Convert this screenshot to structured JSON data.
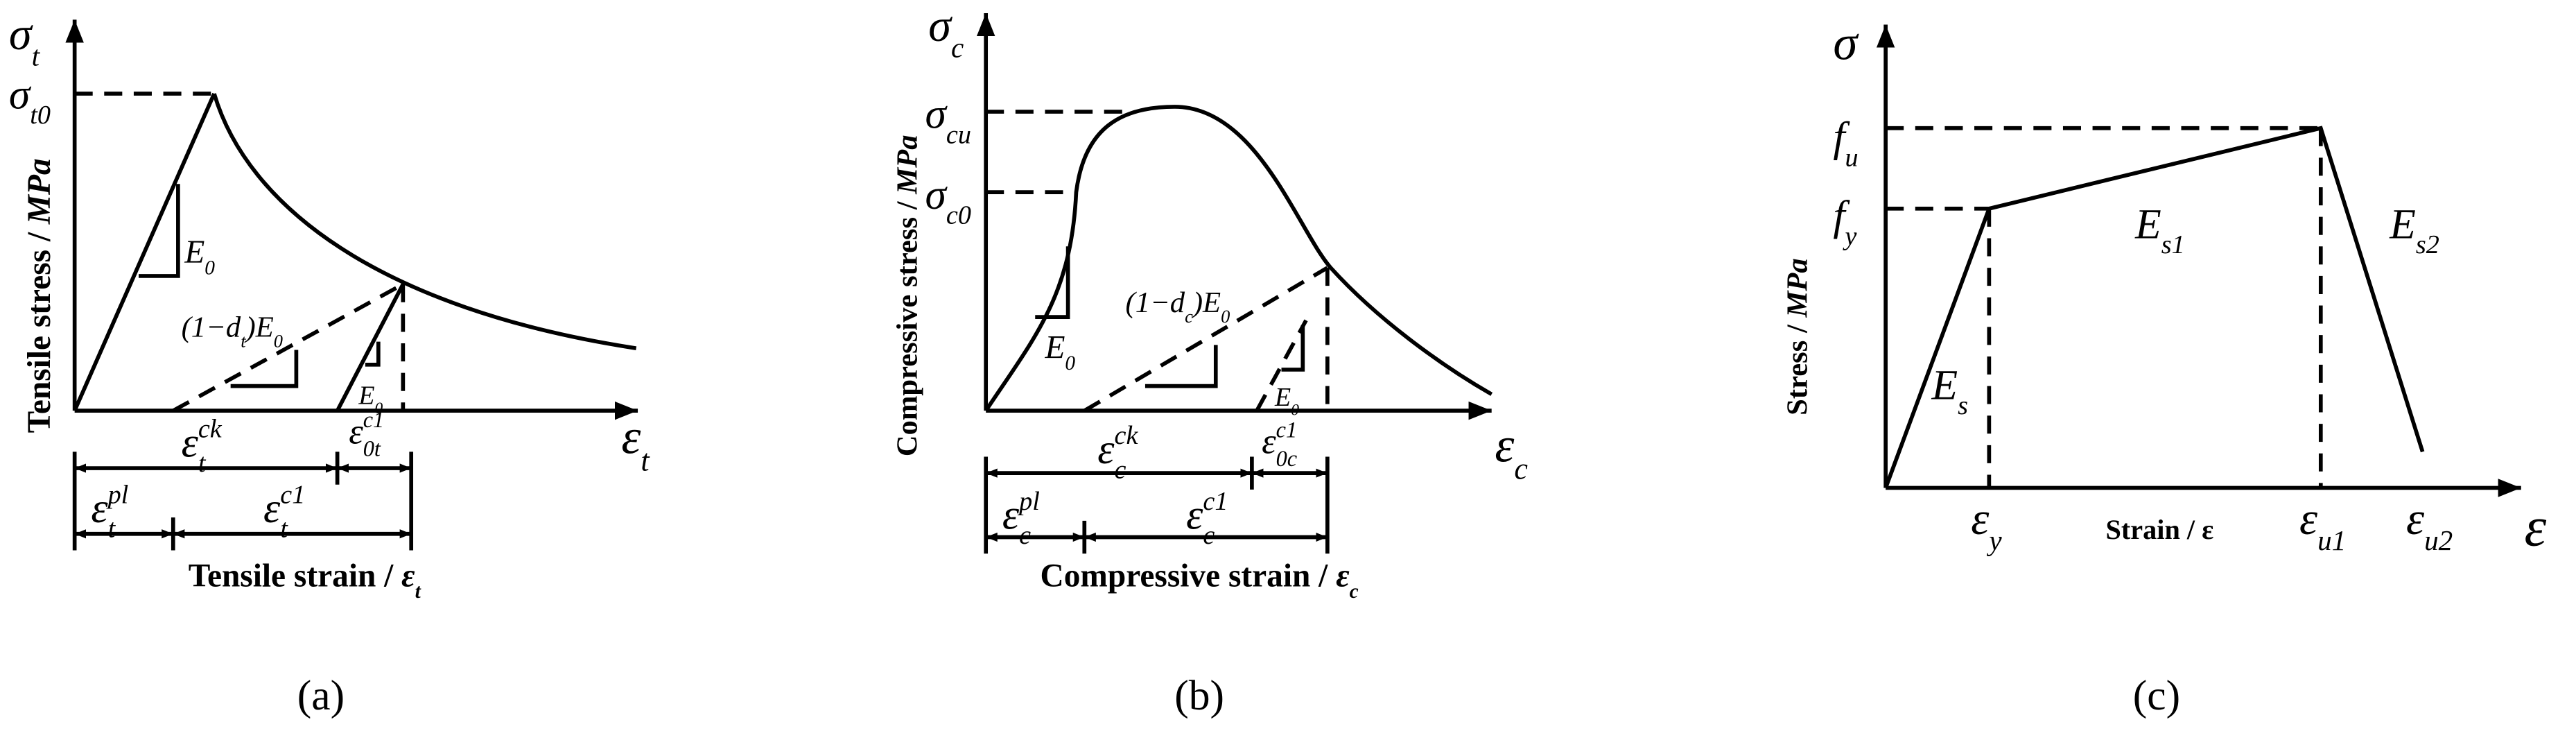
{
  "panels": [
    {
      "caption": "(a)",
      "y_axis": {
        "base": "σ",
        "sub": "t"
      },
      "x_axis": {
        "base": "ε",
        "sub": "t"
      },
      "peak": {
        "base": "σ",
        "sub": "t0"
      },
      "y_title": {
        "text": "Tensile stress / ",
        "unit": "MPa"
      },
      "x_title": {
        "text": "Tensile strain / ",
        "unit": "ε",
        "unit_sub": "t"
      },
      "elastic_modulus": {
        "base": "E",
        "sub": "0"
      },
      "damaged_modulus": {
        "open": "(1−d",
        "sub": "t",
        "close": ")E",
        "sub2": "0"
      },
      "reload_modulus": {
        "base": "E",
        "sub": "0"
      },
      "cracking_strain": {
        "base": "ε",
        "sub": "t",
        "sup": "ck"
      },
      "elastic_strain": {
        "base": "ε",
        "sub": "0t",
        "sup": "c1"
      },
      "plastic_strain": {
        "base": "ε",
        "sub": "t",
        "sup": "pl"
      },
      "inelastic_strain": {
        "base": "ε",
        "sub": "t",
        "sup": "c1"
      }
    },
    {
      "caption": "(b)",
      "y_axis": {
        "base": "σ",
        "sub": "c"
      },
      "x_axis": {
        "base": "ε",
        "sub": "c"
      },
      "peak": {
        "base": "σ",
        "sub": "cu"
      },
      "initial_yield": {
        "base": "σ",
        "sub": "c0"
      },
      "y_title": {
        "text": "Compressive stress / ",
        "unit": "MPa"
      },
      "x_title": {
        "text": "Compressive strain / ",
        "unit": "ε",
        "unit_sub": "c"
      },
      "elastic_modulus": {
        "base": "E",
        "sub": "0"
      },
      "damaged_modulus": {
        "open": "(1−d",
        "sub": "c",
        "close": ")E",
        "sub2": "0"
      },
      "reload_modulus": {
        "base": "E",
        "sub": "0"
      },
      "cracking_strain": {
        "base": "ε",
        "sub": "c",
        "sup": "ck"
      },
      "elastic_strain": {
        "base": "ε",
        "sub": "0c",
        "sup": "c1"
      },
      "plastic_strain": {
        "base": "ε",
        "sub": "c",
        "sup": "pl"
      },
      "inelastic_strain": {
        "base": "ε",
        "sub": "c",
        "sup": "c1"
      }
    },
    {
      "caption": "(c)",
      "y_axis": {
        "base": "σ"
      },
      "x_axis": {
        "base": "ε"
      },
      "ultimate_stress": {
        "base": "f",
        "sub": "u"
      },
      "yield_stress": {
        "base": "f",
        "sub": "y"
      },
      "y_title": {
        "text": "Stress / ",
        "unit": "MPa"
      },
      "x_title": "Strain / ε",
      "elastic_modulus": {
        "base": "E",
        "sub": "s"
      },
      "hardening_modulus": {
        "base": "E",
        "sub": "s1"
      },
      "softening_modulus": {
        "base": "E",
        "sub": "s2"
      },
      "yield_strain": {
        "base": "ε",
        "sub": "y"
      },
      "ultimate_strain": {
        "base": "ε",
        "sub": "u1"
      },
      "failure_strain": {
        "base": "ε",
        "sub": "u2"
      }
    }
  ]
}
